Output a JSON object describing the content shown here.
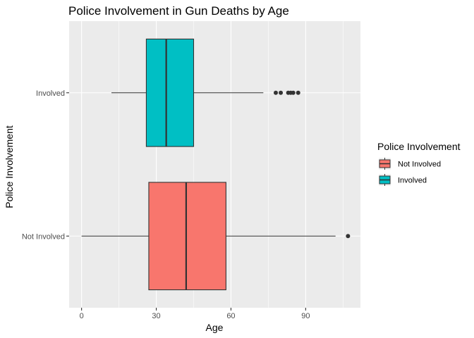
{
  "chart_data": {
    "type": "boxplot",
    "orientation": "horizontal",
    "title": "Police Involvement in Gun Deaths by Age",
    "xlabel": "Age",
    "ylabel": "Police Involvement",
    "xlim": [
      -5,
      112
    ],
    "x_ticks": [
      0,
      30,
      60,
      90
    ],
    "grid": true,
    "legend_title": "Police Involvement",
    "legend_position": "right",
    "categories": [
      "Not Involved",
      "Involved"
    ],
    "series": [
      {
        "name": "Not Involved",
        "color": "#F8766D",
        "min": 0,
        "q1": 27,
        "median": 42,
        "q3": 58,
        "max": 102,
        "outliers": [
          107
        ]
      },
      {
        "name": "Involved",
        "color": "#00BFC4",
        "min": 12,
        "q1": 26,
        "median": 34,
        "q3": 45,
        "max": 73,
        "outliers": [
          78,
          80,
          83,
          84,
          85,
          87
        ]
      }
    ]
  }
}
